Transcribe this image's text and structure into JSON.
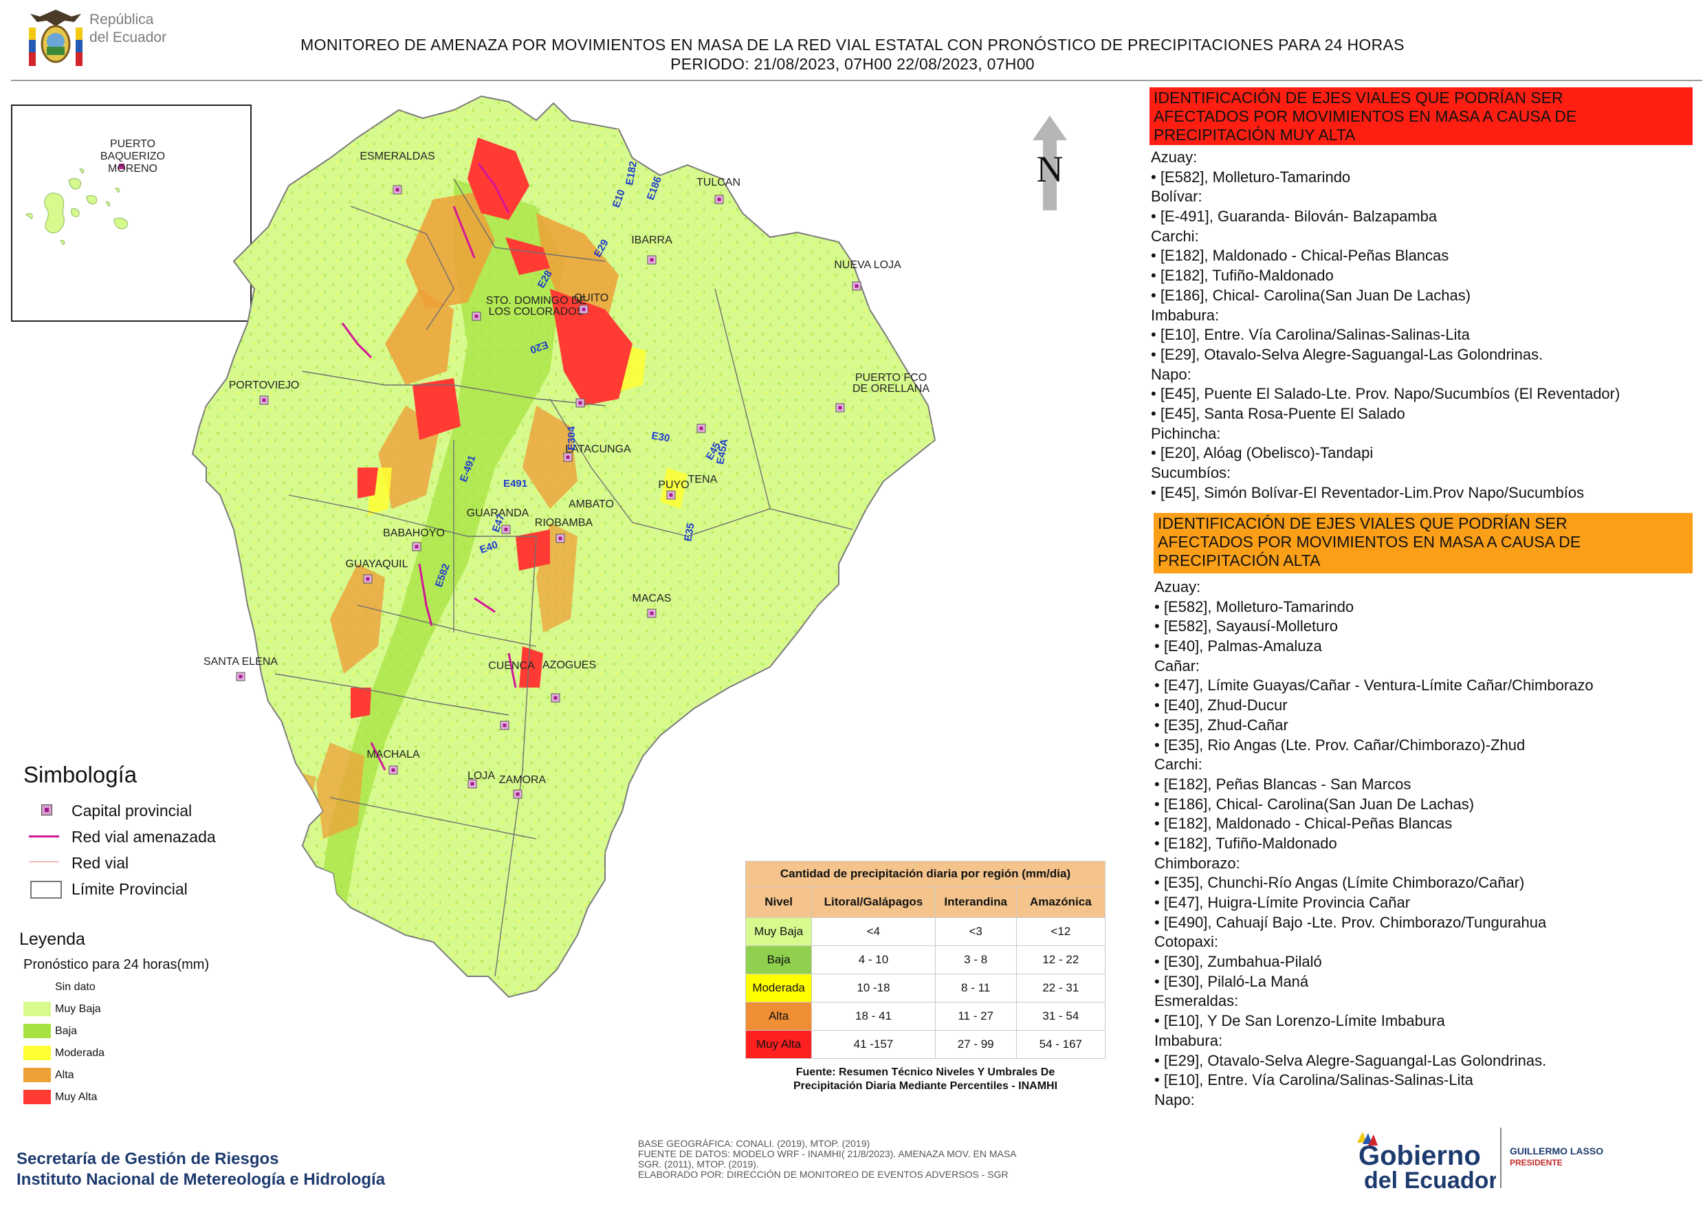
{
  "header": {
    "country_logo_text": [
      "República",
      "del Ecuador"
    ],
    "title_line1": "MONITOREO DE AMENAZA POR MOVIMIENTOS EN MASA DE LA RED VIAL  ESTATAL  CON PRONÓSTICO  DE  PRECIPITACIONES PARA 24 HORAS",
    "title_line2": "PERIODO: 21/08/2023, 07H00 22/08/2023, 07H00"
  },
  "north_label": "N",
  "inset": {
    "city": "PUERTO BAQUERIZO MORENO",
    "city_lines": [
      "PUERTO",
      "BAQUERIZO",
      "MORENO"
    ]
  },
  "cities": [
    {
      "name": "ESMERALDAS"
    },
    {
      "name": "TULCAN"
    },
    {
      "name": "IBARRA"
    },
    {
      "name": "NUEVA LOJA"
    },
    {
      "name": "STO. DOMINGO DE"
    },
    {
      "name": "LOS COLORADOS"
    },
    {
      "name": "QUITO"
    },
    {
      "name": "PUERTO FCO"
    },
    {
      "name": "DE ORELLANA"
    },
    {
      "name": "PORTOVIEJO"
    },
    {
      "name": "LATACUNGA"
    },
    {
      "name": "TENA"
    },
    {
      "name": "AMBATO"
    },
    {
      "name": "PUYO"
    },
    {
      "name": "GUARANDA"
    },
    {
      "name": "RIOBAMBA"
    },
    {
      "name": "BABAHOYO"
    },
    {
      "name": "GUAYAQUIL"
    },
    {
      "name": "SANTA ELENA"
    },
    {
      "name": "MACAS"
    },
    {
      "name": "AZOGUES"
    },
    {
      "name": "CUENCA"
    },
    {
      "name": "MACHALA"
    },
    {
      "name": "LOJA"
    },
    {
      "name": "ZAMORA"
    }
  ],
  "road_labels": [
    "E10",
    "E182",
    "E186",
    "E29",
    "E28",
    "E35",
    "E20",
    "E45",
    "E45A",
    "E30",
    "E304",
    "E491",
    "E-491",
    "E47",
    "E40",
    "E582"
  ],
  "red_panel": {
    "heading": [
      "IDENTIFICACIÓN DE EJES VIALES QUE PODRÍAN SER",
      "AFECTADOS POR MOVIMIENTOS EN MASA A CAUSA DE",
      "PRECIPITACIÓN MUY ALTA"
    ],
    "lines": [
      "Azuay:",
      "• [E582], Molleturo-Tamarindo",
      "Bolívar:",
      "• [E-491], Guaranda- Bilován- Balzapamba",
      "Carchi:",
      "• [E182], Maldonado - Chical-Peñas Blancas",
      "• [E182], Tufiño-Maldonado",
      "• [E186], Chical- Carolina(San Juan De Lachas)",
      "Imbabura:",
      "• [E10], Entre. Vía Carolina/Salinas-Salinas-Lita",
      "• [E29], Otavalo-Selva Alegre-Saguangal-Las Golondrinas.",
      "Napo:",
      "• [E45], Puente El Salado-Lte. Prov. Napo/Sucumbíos (El Reventador)",
      "• [E45], Santa Rosa-Puente El Salado",
      "Pichincha:",
      "• [E20], Alóag (Obelisco)-Tandapi",
      "Sucumbíos:",
      "• [E45], Simón Bolívar-El Reventador-Lim.Prov Napo/Sucumbíos"
    ]
  },
  "orange_panel": {
    "heading": [
      "IDENTIFICACIÓN DE EJES VIALES QUE PODRÍAN SER",
      "AFECTADOS POR MOVIMIENTOS EN MASA A CAUSA DE",
      "PRECIPITACIÓN  ALTA"
    ],
    "lines": [
      "Azuay:",
      "• [E582], Molleturo-Tamarindo",
      "• [E582], Sayausí-Molleturo",
      "• [E40], Palmas-Amaluza",
      "Cañar:",
      "• [E47], Límite Guayas/Cañar - Ventura-Límite Cañar/Chimborazo",
      "• [E40], Zhud-Ducur",
      "• [E35], Zhud-Cañar",
      "• [E35], Rio Angas (Lte. Prov. Cañar/Chimborazo)-Zhud",
      "Carchi:",
      "• [E182], Peñas Blancas - San Marcos",
      "• [E186], Chical- Carolina(San Juan De Lachas)",
      "• [E182], Maldonado - Chical-Peñas Blancas",
      "• [E182], Tufiño-Maldonado",
      "Chimborazo:",
      "• [E35], Chunchi-Río Angas (Límite Chimborazo/Cañar)",
      "• [E47], Huigra-Límite Provincia Cañar",
      "• [E490], Cahuají Bajo -Lte. Prov. Chimborazo/Tungurahua",
      "Cotopaxi:",
      "• [E30], Zumbahua-Pilaló",
      "• [E30], Pilaló-La Maná",
      "Esmeraldas:",
      "• [E10], Y De San Lorenzo-Límite Imbabura",
      "Imbabura:",
      "• [E29], Otavalo-Selva Alegre-Saguangal-Las Golondrinas.",
      "• [E10], Entre. Vía Carolina/Salinas-Salinas-Lita",
      "Napo:"
    ]
  },
  "simbologia": {
    "title": "Simbología",
    "items": [
      {
        "label": "Capital provincial"
      },
      {
        "label": "Red vial amenazada"
      },
      {
        "label": "Red vial"
      },
      {
        "label": "Límite Provincial"
      }
    ]
  },
  "leyenda": {
    "title": "Leyenda",
    "subtitle": "Pronóstico para 24 horas(mm)",
    "items": [
      {
        "label": "Sin dato",
        "color": "#ffffff"
      },
      {
        "label": "Muy Baja",
        "color": "#d7fa8f"
      },
      {
        "label": "Baja",
        "color": "#a6e340"
      },
      {
        "label": "Moderada",
        "color": "#ffff33"
      },
      {
        "label": "Alta",
        "color": "#eda038"
      },
      {
        "label": "Muy Alta",
        "color": "#ff3b34"
      }
    ]
  },
  "precip_table": {
    "caption": "Cantidad de precipitación diaria por región (mm/dia)",
    "headers": [
      "Nivel",
      "Litoral/Galápagos",
      "Interandina",
      "Amazónica"
    ],
    "rows": [
      {
        "nivel": "Muy Baja",
        "color": "#d7fa8f",
        "values": [
          "<4",
          "<3",
          "<12"
        ]
      },
      {
        "nivel": "Baja",
        "color": "#8fd14f",
        "values": [
          "4 - 10",
          "3 - 8",
          "12 - 22"
        ]
      },
      {
        "nivel": "Moderada",
        "color": "#ffff00",
        "values": [
          "10 -18",
          "8 - 11",
          "22 - 31"
        ]
      },
      {
        "nivel": "Alta",
        "color": "#ef8e35",
        "values": [
          "18 - 41",
          "11 - 27",
          "31 - 54"
        ]
      },
      {
        "nivel": "Muy Alta",
        "color": "#ff2020",
        "values": [
          "41 -157",
          "27 - 99",
          "54 - 167"
        ]
      }
    ],
    "source": [
      "Fuente: Resumen Técnico Niveles Y Umbrales De",
      "Precipitación Diaria Mediante Percentiles - INAMHI"
    ]
  },
  "footer": {
    "institution1": "Secretaría de Gestión de Riesgos",
    "institution2": "Instituto Nacional de Metereología e Hidrología",
    "credits": [
      "BASE GEOGRÁFICA: CONALI. (2019), MTOP. (2019)",
      "FUENTE DE DATOS: MODELO WRF - INAMHI( 21/8/2023).  AMENAZA MOV. EN MASA",
      "SGR. (2011), MTOP. (2019).",
      "ELABORADO POR: DIRECCIÓN DE MONITOREO DE EVENTOS ADVERSOS - SGR"
    ],
    "gob_logo": [
      "Gobierno",
      "del Ecuador"
    ],
    "president_name": "GUILLERMO LASSO",
    "president_title": "PRESIDENTE"
  },
  "colors": {
    "muy_alta": "#ff3b34",
    "alta": "#eda038",
    "moderada": "#ffff33",
    "baja": "#a6e340",
    "muy_baja": "#d7fa8f",
    "road_threat": "#d4149b"
  }
}
